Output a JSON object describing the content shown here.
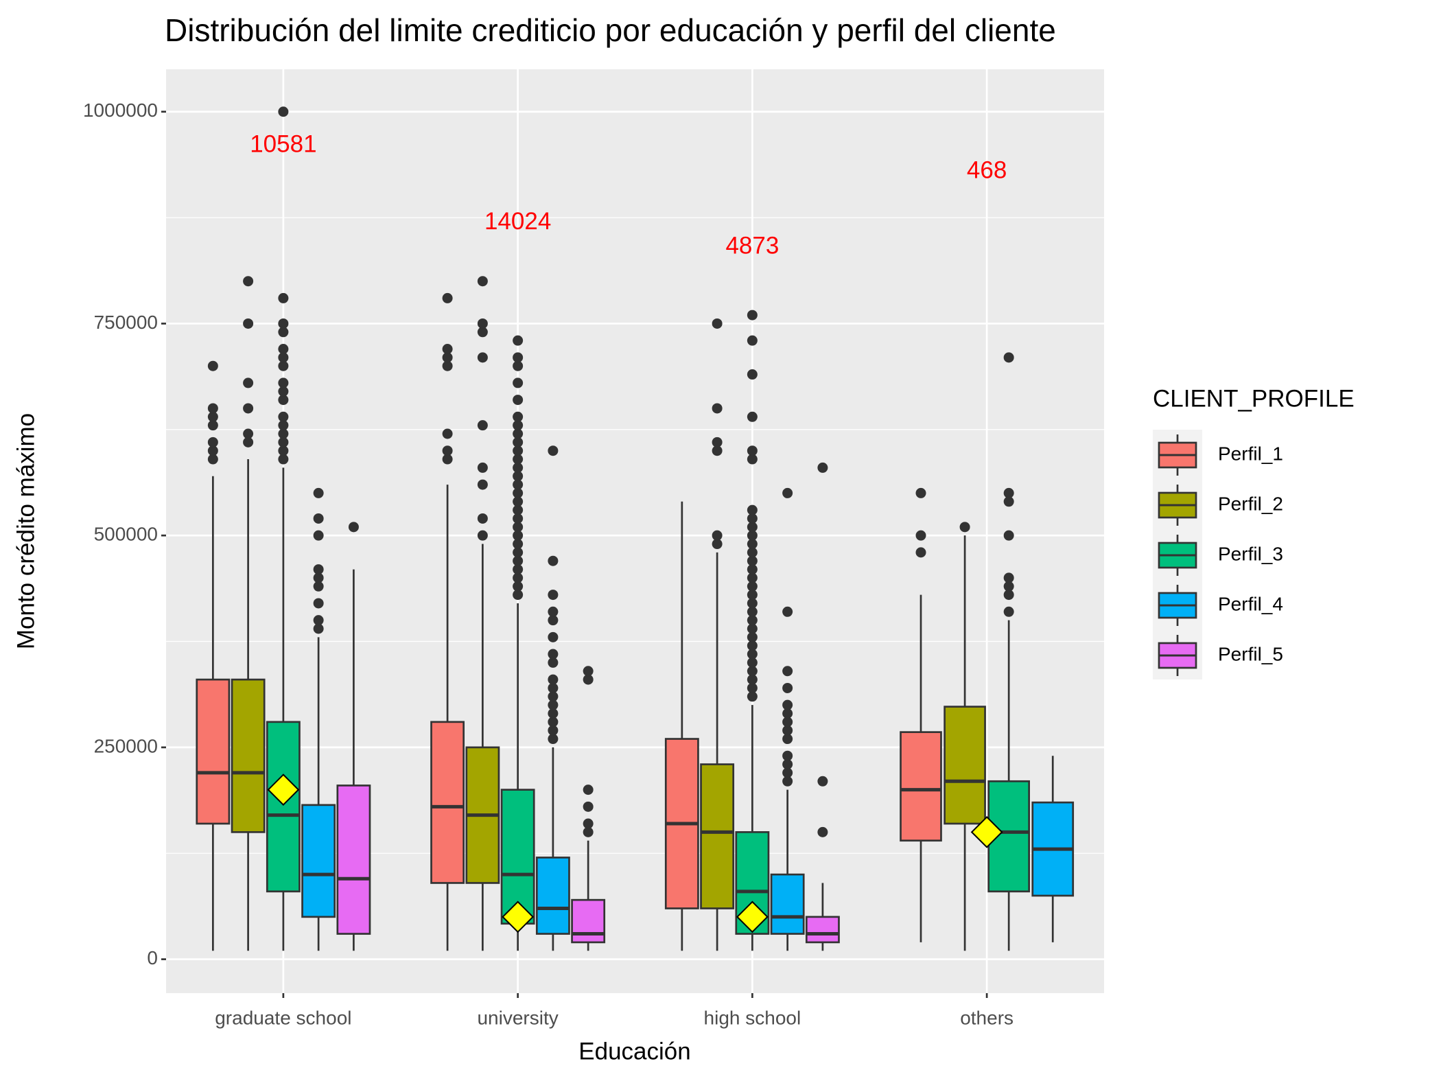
{
  "chart_data": {
    "type": "box",
    "title": "Distribución del limite crediticio por educación y perfil del cliente",
    "x_label": "Educación",
    "y_label": "Monto crédito máximo",
    "legend_title": "CLIENT_PROFILE",
    "legend_position": "right",
    "grid": true,
    "categories": [
      "graduate school",
      "university",
      "high school",
      "others"
    ],
    "ylim": [
      -40000,
      1050000
    ],
    "yticks": [
      0,
      250000,
      500000,
      750000,
      1000000
    ],
    "means": {
      "color": "#FFFF00",
      "values": [
        200000,
        50000,
        50000,
        150000
      ]
    },
    "annotations": [
      {
        "label": 10581,
        "y": 960000,
        "color": "#FF0000"
      },
      {
        "label": 14024,
        "y": 869000,
        "color": "#FF0000"
      },
      {
        "label": 4873,
        "y": 840000,
        "color": "#FF0000"
      },
      {
        "label": 468,
        "y": 929000,
        "color": "#FF0000"
      }
    ],
    "series": [
      {
        "name": "Perfil_1",
        "color": "#F8766D",
        "values": [
          {
            "min": 10000,
            "q1": 160000,
            "median": 220000,
            "q3": 330000,
            "max": 570000,
            "outliers": [
              590000,
              600000,
              610000,
              630000,
              640000,
              650000,
              700000
            ]
          },
          {
            "min": 10000,
            "q1": 90000,
            "median": 180000,
            "q3": 280000,
            "max": 560000,
            "outliers": [
              590000,
              600000,
              620000,
              700000,
              710000,
              720000,
              780000
            ]
          },
          {
            "min": 10000,
            "q1": 60000,
            "median": 160000,
            "q3": 260000,
            "max": 540000,
            "outliers": []
          },
          {
            "min": 20000,
            "q1": 140000,
            "median": 200000,
            "q3": 268000,
            "max": 430000,
            "outliers": [
              480000,
              500000,
              550000
            ]
          }
        ]
      },
      {
        "name": "Perfil_2",
        "color": "#A3A500",
        "values": [
          {
            "min": 10000,
            "q1": 150000,
            "median": 220000,
            "q3": 330000,
            "max": 590000,
            "outliers": [
              610000,
              620000,
              650000,
              680000,
              750000,
              800000
            ]
          },
          {
            "min": 10000,
            "q1": 90000,
            "median": 170000,
            "q3": 250000,
            "max": 490000,
            "outliers": [
              500000,
              520000,
              560000,
              580000,
              630000,
              710000,
              740000,
              750000,
              800000
            ]
          },
          {
            "min": 10000,
            "q1": 60000,
            "median": 150000,
            "q3": 230000,
            "max": 480000,
            "outliers": [
              490000,
              500000,
              600000,
              610000,
              650000,
              750000
            ]
          },
          {
            "min": 10000,
            "q1": 160000,
            "median": 210000,
            "q3": 298000,
            "max": 500000,
            "outliers": [
              510000
            ]
          }
        ]
      },
      {
        "name": "Perfil_3",
        "color": "#00BF7D",
        "values": [
          {
            "min": 10000,
            "q1": 80000,
            "median": 170000,
            "q3": 280000,
            "max": 580000,
            "outliers": [
              590000,
              600000,
              610000,
              620000,
              630000,
              640000,
              660000,
              670000,
              680000,
              700000,
              710000,
              720000,
              740000,
              750000,
              780000,
              1000000
            ]
          },
          {
            "min": 10000,
            "q1": 42000,
            "median": 100000,
            "q3": 200000,
            "max": 420000,
            "outliers": [
              430000,
              440000,
              450000,
              460000,
              470000,
              480000,
              490000,
              500000,
              510000,
              520000,
              530000,
              540000,
              550000,
              560000,
              570000,
              580000,
              590000,
              600000,
              610000,
              620000,
              630000,
              640000,
              660000,
              680000,
              700000,
              710000,
              730000
            ]
          },
          {
            "min": 10000,
            "q1": 30000,
            "median": 80000,
            "q3": 150000,
            "max": 300000,
            "outliers": [
              310000,
              320000,
              330000,
              340000,
              350000,
              360000,
              370000,
              380000,
              390000,
              400000,
              410000,
              420000,
              430000,
              440000,
              450000,
              460000,
              470000,
              480000,
              490000,
              500000,
              510000,
              520000,
              530000,
              590000,
              600000,
              640000,
              690000,
              730000,
              760000
            ]
          },
          {
            "min": 10000,
            "q1": 80000,
            "median": 150000,
            "q3": 210000,
            "max": 400000,
            "outliers": [
              410000,
              430000,
              440000,
              450000,
              500000,
              540000,
              550000,
              710000
            ]
          }
        ]
      },
      {
        "name": "Perfil_4",
        "color": "#00B0F6",
        "values": [
          {
            "min": 10000,
            "q1": 50000,
            "median": 100000,
            "q3": 182000,
            "max": 380000,
            "outliers": [
              390000,
              400000,
              420000,
              440000,
              450000,
              460000,
              500000,
              520000,
              550000
            ]
          },
          {
            "min": 10000,
            "q1": 30000,
            "median": 60000,
            "q3": 120000,
            "max": 250000,
            "outliers": [
              260000,
              270000,
              280000,
              290000,
              300000,
              310000,
              320000,
              330000,
              350000,
              360000,
              380000,
              400000,
              410000,
              430000,
              470000,
              600000
            ]
          },
          {
            "min": 10000,
            "q1": 30000,
            "median": 50000,
            "q3": 100000,
            "max": 200000,
            "outliers": [
              210000,
              220000,
              230000,
              240000,
              260000,
              270000,
              280000,
              290000,
              300000,
              320000,
              340000,
              410000,
              550000
            ]
          },
          {
            "min": 20000,
            "q1": 75000,
            "median": 130000,
            "q3": 185000,
            "max": 240000,
            "outliers": []
          }
        ]
      },
      {
        "name": "Perfil_5",
        "color": "#E76BF3",
        "values": [
          {
            "min": 10000,
            "q1": 30000,
            "median": 95000,
            "q3": 205000,
            "max": 460000,
            "outliers": [
              510000
            ]
          },
          {
            "min": 10000,
            "q1": 20000,
            "median": 30000,
            "q3": 70000,
            "max": 140000,
            "outliers": [
              150000,
              160000,
              180000,
              200000,
              330000,
              340000
            ]
          },
          {
            "min": 10000,
            "q1": 20000,
            "median": 30000,
            "q3": 50000,
            "max": 90000,
            "outliers": [
              150000,
              210000,
              580000
            ]
          },
          null
        ]
      }
    ]
  }
}
